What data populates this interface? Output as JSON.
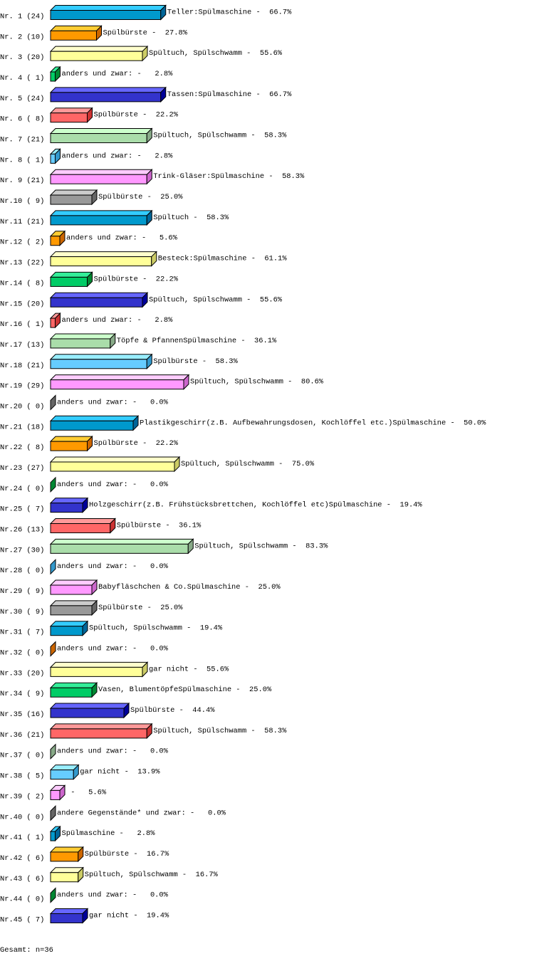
{
  "chart_data": {
    "type": "bar",
    "orientation": "horizontal",
    "style": "3d",
    "unit": "%",
    "rows": [
      {
        "nr": "Nr. 1 (24)",
        "count": 24,
        "label": "Teller:Spülmaschine",
        "pct": 66.7
      },
      {
        "nr": "Nr. 2 (10)",
        "count": 10,
        "label": "Spülbürste",
        "pct": 27.8
      },
      {
        "nr": "Nr. 3 (20)",
        "count": 20,
        "label": "Spültuch, Spülschwamm",
        "pct": 55.6
      },
      {
        "nr": "Nr. 4 ( 1)",
        "count": 1,
        "label": "anders und zwar:",
        "pct": 2.8
      },
      {
        "nr": "Nr. 5 (24)",
        "count": 24,
        "label": "Tassen:Spülmaschine",
        "pct": 66.7
      },
      {
        "nr": "Nr. 6 ( 8)",
        "count": 8,
        "label": "Spülbürste",
        "pct": 22.2
      },
      {
        "nr": "Nr. 7 (21)",
        "count": 21,
        "label": "Spültuch, Spülschwamm",
        "pct": 58.3
      },
      {
        "nr": "Nr. 8 ( 1)",
        "count": 1,
        "label": "anders und zwar:",
        "pct": 2.8
      },
      {
        "nr": "Nr. 9 (21)",
        "count": 21,
        "label": "Trink-Gläser:Spülmaschine",
        "pct": 58.3
      },
      {
        "nr": "Nr.10 ( 9)",
        "count": 9,
        "label": "Spülbürste",
        "pct": 25.0
      },
      {
        "nr": "Nr.11 (21)",
        "count": 21,
        "label": "Spültuch",
        "pct": 58.3
      },
      {
        "nr": "Nr.12 ( 2)",
        "count": 2,
        "label": "anders und zwar:",
        "pct": 5.6
      },
      {
        "nr": "Nr.13 (22)",
        "count": 22,
        "label": "Besteck:Spülmaschine",
        "pct": 61.1
      },
      {
        "nr": "Nr.14 ( 8)",
        "count": 8,
        "label": "Spülbürste",
        "pct": 22.2
      },
      {
        "nr": "Nr.15 (20)",
        "count": 20,
        "label": "Spültuch, Spülschwamm",
        "pct": 55.6
      },
      {
        "nr": "Nr.16 ( 1)",
        "count": 1,
        "label": "anders und zwar:",
        "pct": 2.8
      },
      {
        "nr": "Nr.17 (13)",
        "count": 13,
        "label": "Töpfe & PfannenSpülmaschine",
        "pct": 36.1
      },
      {
        "nr": "Nr.18 (21)",
        "count": 21,
        "label": "Spülbürste",
        "pct": 58.3
      },
      {
        "nr": "Nr.19 (29)",
        "count": 29,
        "label": "Spültuch, Spülschwamm",
        "pct": 80.6
      },
      {
        "nr": "Nr.20 ( 0)",
        "count": 0,
        "label": "anders und zwar:",
        "pct": 0.0
      },
      {
        "nr": "Nr.21 (18)",
        "count": 18,
        "label": "Plastikgeschirr(z.B. Aufbewahrungsdosen, Kochlöffel etc.)Spülmaschine",
        "pct": 50.0
      },
      {
        "nr": "Nr.22 ( 8)",
        "count": 8,
        "label": "Spülbürste",
        "pct": 22.2
      },
      {
        "nr": "Nr.23 (27)",
        "count": 27,
        "label": "Spültuch, Spülschwamm",
        "pct": 75.0
      },
      {
        "nr": "Nr.24 ( 0)",
        "count": 0,
        "label": "anders und zwar:",
        "pct": 0.0
      },
      {
        "nr": "Nr.25 ( 7)",
        "count": 7,
        "label": "Holzgeschirr(z.B. Frühstücksbrettchen, Kochlöffel etc)Spülmaschine",
        "pct": 19.4
      },
      {
        "nr": "Nr.26 (13)",
        "count": 13,
        "label": "Spülbürste",
        "pct": 36.1
      },
      {
        "nr": "Nr.27 (30)",
        "count": 30,
        "label": "Spültuch, Spülschwamm",
        "pct": 83.3
      },
      {
        "nr": "Nr.28 ( 0)",
        "count": 0,
        "label": "anders und zwar:",
        "pct": 0.0
      },
      {
        "nr": "Nr.29 ( 9)",
        "count": 9,
        "label": "Babyfläschchen & Co.Spülmaschine",
        "pct": 25.0
      },
      {
        "nr": "Nr.30 ( 9)",
        "count": 9,
        "label": "Spülbürste",
        "pct": 25.0
      },
      {
        "nr": "Nr.31 ( 7)",
        "count": 7,
        "label": "Spültuch, Spülschwamm",
        "pct": 19.4
      },
      {
        "nr": "Nr.32 ( 0)",
        "count": 0,
        "label": "anders und zwar:",
        "pct": 0.0
      },
      {
        "nr": "Nr.33 (20)",
        "count": 20,
        "label": "gar nicht",
        "pct": 55.6
      },
      {
        "nr": "Nr.34 ( 9)",
        "count": 9,
        "label": "Vasen, BlumentöpfeSpülmaschine",
        "pct": 25.0
      },
      {
        "nr": "Nr.35 (16)",
        "count": 16,
        "label": "Spülbürste",
        "pct": 44.4
      },
      {
        "nr": "Nr.36 (21)",
        "count": 21,
        "label": "Spültuch, Spülschwamm",
        "pct": 58.3
      },
      {
        "nr": "Nr.37 ( 0)",
        "count": 0,
        "label": "anders und zwar:",
        "pct": 0.0
      },
      {
        "nr": "Nr.38 ( 5)",
        "count": 5,
        "label": "gar nicht",
        "pct": 13.9
      },
      {
        "nr": "Nr.39 ( 2)",
        "count": 2,
        "label": "",
        "pct": 5.6
      },
      {
        "nr": "Nr.40 ( 0)",
        "count": 0,
        "label": "andere Gegenstände* und zwar:",
        "pct": 0.0
      },
      {
        "nr": "Nr.41 ( 1)",
        "count": 1,
        "label": "Spülmaschine",
        "pct": 2.8
      },
      {
        "nr": "Nr.42 ( 6)",
        "count": 6,
        "label": "Spülbürste",
        "pct": 16.7
      },
      {
        "nr": "Nr.43 ( 6)",
        "count": 6,
        "label": "Spültuch, Spülschwamm",
        "pct": 16.7
      },
      {
        "nr": "Nr.44 ( 0)",
        "count": 0,
        "label": "anders und zwar:",
        "pct": 0.0
      },
      {
        "nr": "Nr.45 ( 7)",
        "count": 7,
        "label": "gar nicht",
        "pct": 19.4
      }
    ],
    "palette": [
      {
        "front": "#0099cc",
        "top": "#33ccff",
        "side": "#006699"
      },
      {
        "front": "#ff9900",
        "top": "#ffcc33",
        "side": "#cc6600"
      },
      {
        "front": "#ffff99",
        "top": "#ffffcc",
        "side": "#cccc66"
      },
      {
        "front": "#00cc66",
        "top": "#33ee99",
        "side": "#008833"
      },
      {
        "front": "#3333cc",
        "top": "#6666ff",
        "side": "#000099"
      },
      {
        "front": "#ff6666",
        "top": "#ff9999",
        "side": "#cc3333"
      },
      {
        "front": "#aaddaa",
        "top": "#ccffcc",
        "side": "#88aa88"
      },
      {
        "front": "#66ccff",
        "top": "#99eeff",
        "side": "#3399cc"
      },
      {
        "front": "#ff99ff",
        "top": "#ffccff",
        "side": "#cc66cc"
      },
      {
        "front": "#999999",
        "top": "#cccccc",
        "side": "#666666"
      }
    ],
    "footer": "Gesamt: n=36"
  }
}
